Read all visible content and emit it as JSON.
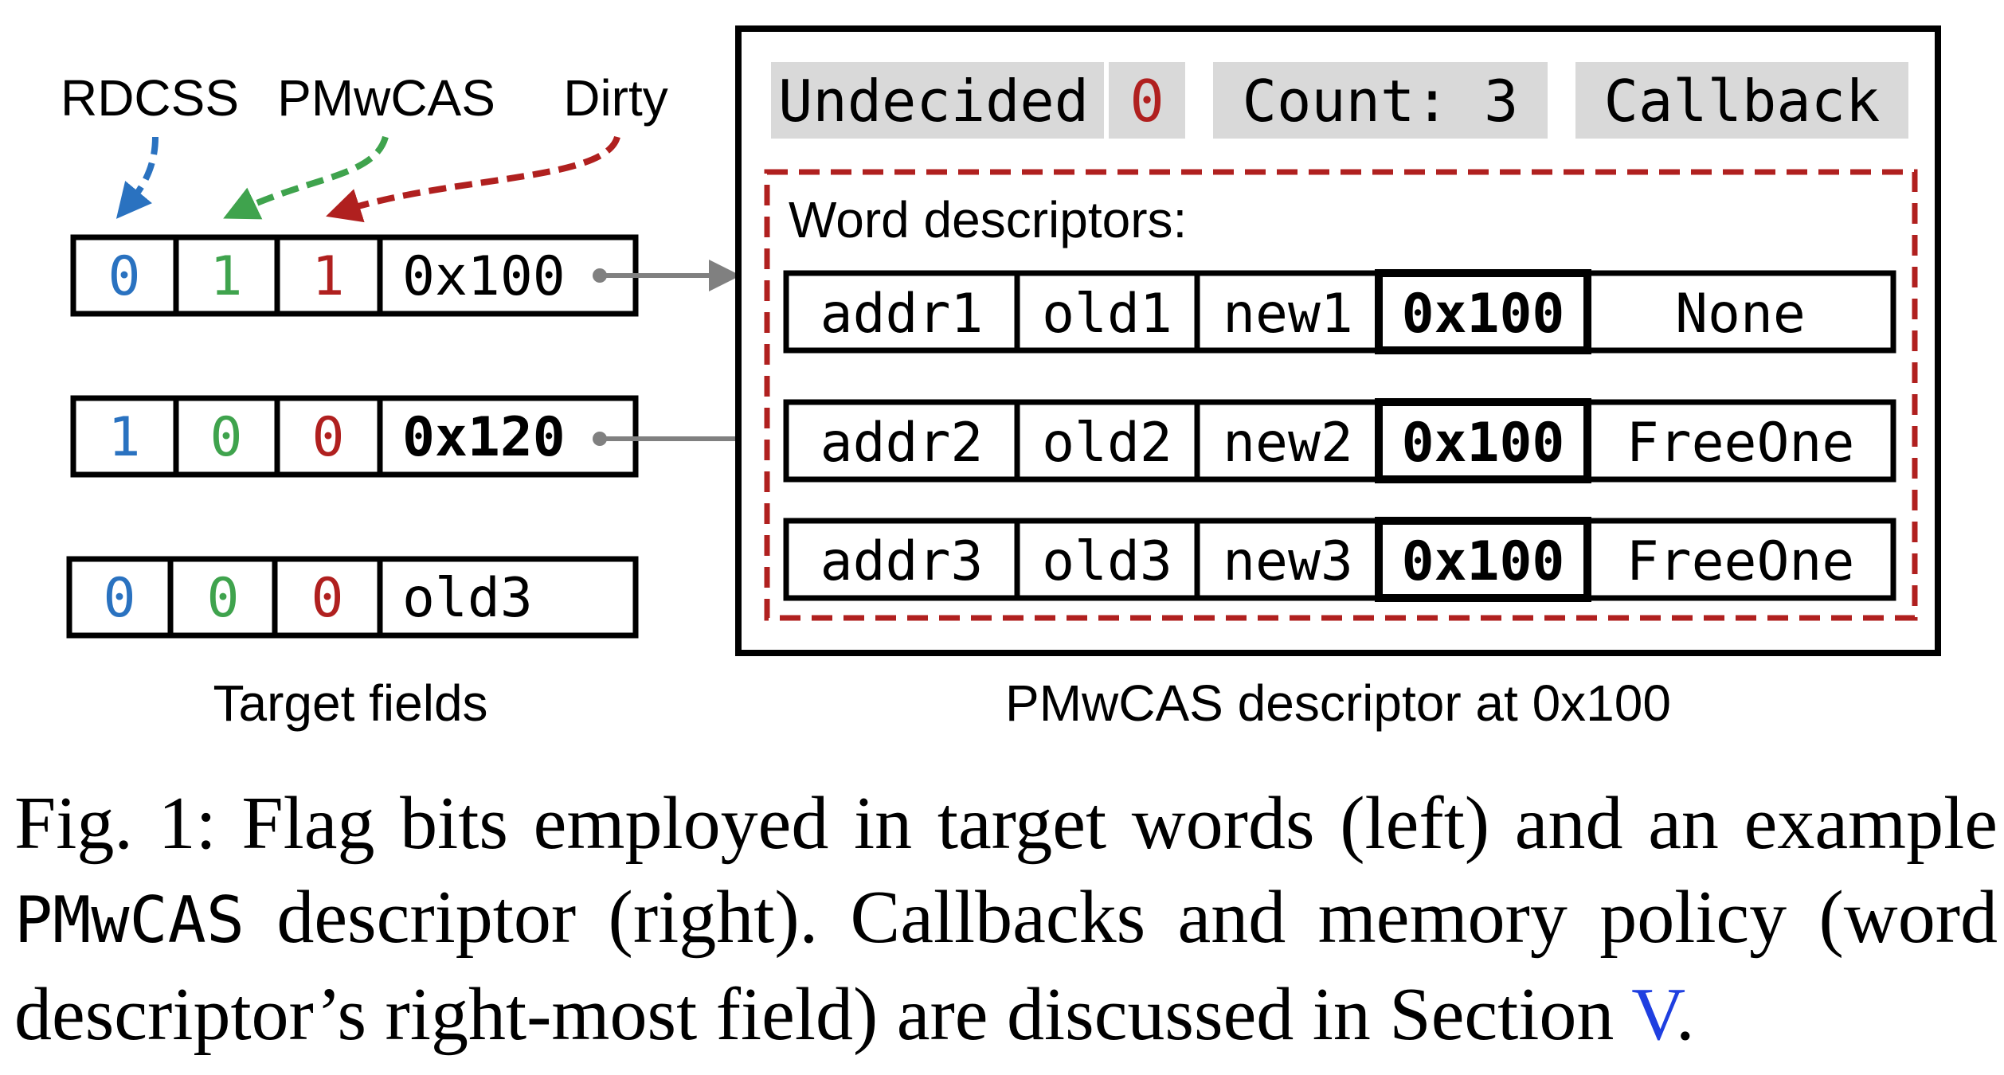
{
  "colors": {
    "rdcss": "#2a72c0",
    "pmwcas": "#3fa34d",
    "dirty": "#b0201f",
    "gray_box": "#d9d9d9",
    "pointer_arrow": "#808080",
    "link": "#1f3fe0"
  },
  "flag_labels": {
    "rdcss": "RDCSS",
    "pmwcas": "PMwCAS",
    "dirty": "Dirty"
  },
  "target_fields": {
    "label": "Target fields",
    "rows": [
      {
        "rdcss": "0",
        "pmwcas": "1",
        "dirty": "1",
        "value": "0x100"
      },
      {
        "rdcss": "1",
        "pmwcas": "0",
        "dirty": "0",
        "value": "0x120"
      },
      {
        "rdcss": "0",
        "pmwcas": "0",
        "dirty": "0",
        "value": "old3"
      }
    ]
  },
  "descriptor": {
    "label": "PMwCAS descriptor at 0x100",
    "status_label": "Undecided",
    "status_value": "0",
    "count": "Count: 3",
    "callback": "Callback",
    "word_descriptors_title": "Word descriptors:",
    "words": [
      {
        "addr": "addr1",
        "old": "old1",
        "new": "new1",
        "desc": "0x100",
        "policy": "None"
      },
      {
        "addr": "addr2",
        "old": "old2",
        "new": "new2",
        "desc": "0x100",
        "policy": "FreeOne"
      },
      {
        "addr": "addr3",
        "old": "old3",
        "new": "new3",
        "desc": "0x100",
        "policy": "FreeOne"
      }
    ]
  },
  "caption": {
    "part1": "Fig. 1: Flag bits employed in target words (left) and an example ",
    "mono": "PMwCAS",
    "part2": " descriptor (right). Callbacks and memory policy (word descriptor’s right-most field) are discussed in Section ",
    "link": "V",
    "part3": "."
  }
}
